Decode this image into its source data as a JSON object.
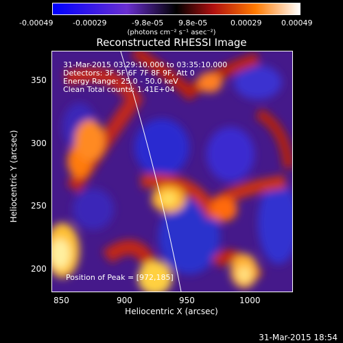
{
  "colorbar": {
    "tick_labels": [
      "-0.00049",
      "-0.00029",
      "-9.8e-05",
      "9.8e-05",
      "0.00029",
      "0.00049"
    ],
    "units": "(photons cm⁻² s⁻¹ asec⁻²)"
  },
  "title": "Reconstructed RHESSI Image",
  "info": {
    "time_range": "31-Mar-2015 03:29:10.000 to 03:35:10.000",
    "detectors": "Detectors: 3F 5F 6F 7F 8F 9F, Att 0",
    "energy_range": "Energy Range: 25.0 - 50.0 keV",
    "algorithm": "Clean    Total counts: 1.41E+04",
    "peak_position": "Position of Peak = [972,185]"
  },
  "axes": {
    "xlabel": "Heliocentric X (arcsec)",
    "ylabel": "Heliocentric Y (arcsec)",
    "x_ticks": [
      "850",
      "900",
      "950",
      "1000"
    ],
    "y_ticks": [
      "200",
      "250",
      "300",
      "350"
    ],
    "xlim": [
      842,
      1032
    ],
    "ylim": [
      182,
      372
    ]
  },
  "footer_timestamp": "31-Mar-2015 18:54"
}
